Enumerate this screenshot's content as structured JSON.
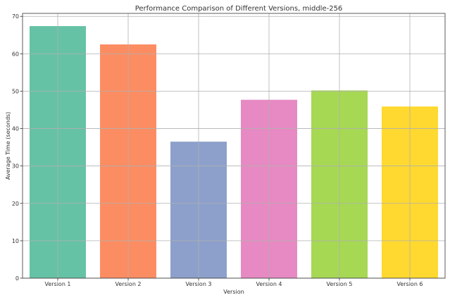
{
  "chart_data": {
    "type": "bar",
    "title": "Performance Comparison of Different Versions, middle-256",
    "xlabel": "Version",
    "ylabel": "Average Time (seconds)",
    "categories": [
      "Version 1",
      "Version 2",
      "Version 3",
      "Version 4",
      "Version 5",
      "Version 6"
    ],
    "values": [
      67.4,
      62.5,
      36.5,
      47.7,
      50.2,
      45.9
    ],
    "colors": [
      "#66c2a5",
      "#fc8d62",
      "#8da0cb",
      "#e78ac3",
      "#a6d854",
      "#ffd92f"
    ],
    "ylim": [
      0,
      70.8
    ],
    "yticks": [
      0,
      10,
      20,
      30,
      40,
      50,
      60,
      70
    ],
    "grid": true,
    "legend": "none"
  }
}
